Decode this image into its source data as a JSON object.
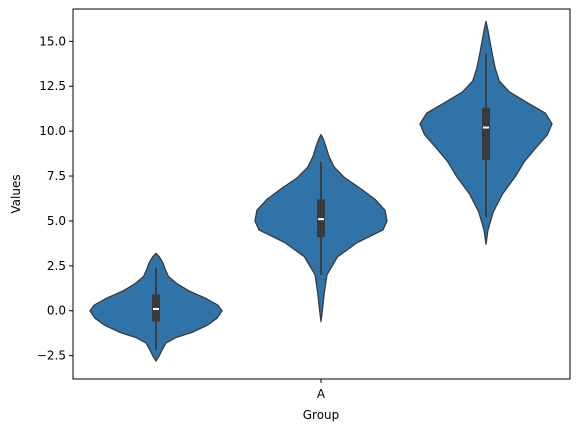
{
  "chart_data": {
    "type": "violin",
    "title": "",
    "xlabel": "Group",
    "ylabel": "Values",
    "x_tick_labels": [
      "A"
    ],
    "y_ticks": [
      -2.5,
      0.0,
      2.5,
      5.0,
      7.5,
      10.0,
      12.5,
      15.0
    ],
    "y_tick_labels": [
      "−2.5",
      "0.0",
      "2.5",
      "5.0",
      "7.5",
      "10.0",
      "12.5",
      "15.0"
    ],
    "ylim": [
      -3.8,
      16.8
    ],
    "grid": false,
    "fill_color": "#2f73a8",
    "line_color": "#3a3a3a",
    "violins": [
      {
        "min": -2.8,
        "max": 3.2,
        "q1": -0.6,
        "median": 0.1,
        "q3": 0.9,
        "whisker_low": -2.2,
        "whisker_high": 2.4,
        "profile": [
          [
            -2.8,
            0.0
          ],
          [
            -2.5,
            0.05
          ],
          [
            -2.2,
            0.09
          ],
          [
            -1.8,
            0.15
          ],
          [
            -1.5,
            0.3
          ],
          [
            -1.2,
            0.55
          ],
          [
            -0.8,
            0.78
          ],
          [
            -0.4,
            0.93
          ],
          [
            0.0,
            1.0
          ],
          [
            0.3,
            0.94
          ],
          [
            0.7,
            0.75
          ],
          [
            1.1,
            0.5
          ],
          [
            1.5,
            0.32
          ],
          [
            1.9,
            0.19
          ],
          [
            2.3,
            0.14
          ],
          [
            2.7,
            0.1
          ],
          [
            3.0,
            0.05
          ],
          [
            3.2,
            0.0
          ]
        ]
      },
      {
        "min": -0.6,
        "max": 9.8,
        "q1": 4.1,
        "median": 5.1,
        "q3": 6.2,
        "whisker_low": 2.0,
        "whisker_high": 8.3,
        "profile": [
          [
            -0.6,
            0.0
          ],
          [
            0.0,
            0.02
          ],
          [
            1.0,
            0.05
          ],
          [
            2.0,
            0.09
          ],
          [
            3.0,
            0.25
          ],
          [
            3.8,
            0.55
          ],
          [
            4.5,
            0.94
          ],
          [
            5.0,
            1.0
          ],
          [
            5.6,
            0.97
          ],
          [
            6.2,
            0.82
          ],
          [
            6.8,
            0.6
          ],
          [
            7.4,
            0.36
          ],
          [
            8.0,
            0.2
          ],
          [
            8.6,
            0.12
          ],
          [
            9.2,
            0.07
          ],
          [
            9.6,
            0.03
          ],
          [
            9.8,
            0.0
          ]
        ]
      },
      {
        "min": 3.7,
        "max": 16.1,
        "q1": 8.4,
        "median": 10.2,
        "q3": 11.3,
        "whisker_low": 5.2,
        "whisker_high": 14.3,
        "profile": [
          [
            3.7,
            0.0
          ],
          [
            4.5,
            0.03
          ],
          [
            5.5,
            0.11
          ],
          [
            6.5,
            0.25
          ],
          [
            7.5,
            0.45
          ],
          [
            8.3,
            0.58
          ],
          [
            9.0,
            0.74
          ],
          [
            9.8,
            0.93
          ],
          [
            10.4,
            1.0
          ],
          [
            11.0,
            0.9
          ],
          [
            11.6,
            0.62
          ],
          [
            12.2,
            0.35
          ],
          [
            12.8,
            0.2
          ],
          [
            13.5,
            0.14
          ],
          [
            14.2,
            0.1
          ],
          [
            15.0,
            0.06
          ],
          [
            15.6,
            0.03
          ],
          [
            16.1,
            0.0
          ]
        ]
      }
    ]
  }
}
